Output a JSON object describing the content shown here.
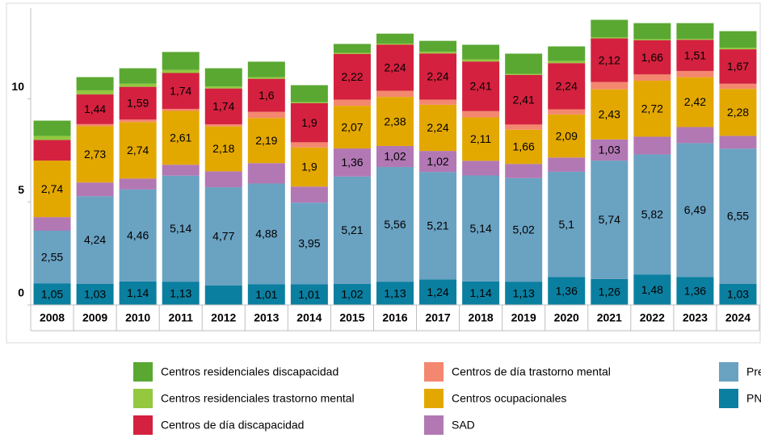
{
  "chart_data": {
    "type": "stacked_bar",
    "categories": [
      "2008",
      "2009",
      "2010",
      "2011",
      "2012",
      "2013",
      "2014",
      "2015",
      "2016",
      "2017",
      "2018",
      "2019",
      "2020",
      "2021",
      "2022",
      "2023",
      "2024"
    ],
    "ylim": [
      0,
      14.4
    ],
    "yticks": [
      0,
      5,
      10
    ],
    "grid": false,
    "series": [
      {
        "name": "PN",
        "color": "#0b7fa0",
        "values": [
          1.05,
          1.03,
          1.14,
          1.13,
          0.94,
          1.01,
          1.01,
          1.02,
          1.13,
          1.24,
          1.14,
          1.13,
          1.36,
          1.26,
          1.48,
          1.36,
          1.03
        ],
        "value_labels": [
          "1,05",
          "1,03",
          "1,14",
          "1,13",
          null,
          "1,01",
          "1,01",
          "1,02",
          "1,13",
          "1,24",
          "1,14",
          "1,13",
          "1,36",
          "1,26",
          "1,48",
          "1,36",
          "1,03"
        ]
      },
      {
        "name": "Pre",
        "color": "#6aa2c2",
        "values": [
          2.55,
          4.24,
          4.46,
          5.14,
          4.77,
          4.88,
          3.95,
          5.21,
          5.56,
          5.21,
          5.14,
          5.02,
          5.1,
          5.74,
          5.82,
          6.49,
          6.55
        ],
        "value_labels": [
          "2,55",
          "4,24",
          "4,46",
          "5,14",
          "4,77",
          "4,88",
          "3,95",
          "5,21",
          "5,56",
          "5,21",
          "5,14",
          "5,02",
          "5,1",
          "5,74",
          "5,82",
          "6,49",
          "6,55"
        ]
      },
      {
        "name": "SAD",
        "color": "#b278b4",
        "values": [
          0.66,
          0.67,
          0.53,
          0.53,
          0.77,
          0.99,
          0.78,
          1.36,
          1.02,
          1.02,
          0.71,
          0.69,
          0.69,
          1.03,
          0.86,
          0.78,
          0.62
        ],
        "value_labels": [
          null,
          null,
          null,
          null,
          null,
          null,
          null,
          "1,36",
          "1,02",
          "1,02",
          null,
          null,
          null,
          "1,03",
          null,
          null,
          null
        ]
      },
      {
        "name": "Centros ocupacionales",
        "color": "#e3a800",
        "values": [
          2.74,
          2.73,
          2.74,
          2.61,
          2.18,
          2.19,
          1.9,
          2.07,
          2.38,
          2.24,
          2.11,
          1.66,
          2.09,
          2.43,
          2.72,
          2.42,
          2.28
        ],
        "value_labels": [
          "2,74",
          "2,73",
          "2,74",
          "2,61",
          "2,18",
          "2,19",
          "1,9",
          "2,07",
          "2,38",
          "2,24",
          "2,11",
          "1,66",
          "2,09",
          "2,43",
          "2,72",
          "2,42",
          "2,28"
        ]
      },
      {
        "name": "Centros de día trastorno mental",
        "color": "#f4876f",
        "values": [
          0,
          0.1,
          0.12,
          0.1,
          0.1,
          0.3,
          0.25,
          0.3,
          0.3,
          0.25,
          0.3,
          0.25,
          0.25,
          0.35,
          0.3,
          0.3,
          0.25
        ]
      },
      {
        "name": "Centros de día discapacidad",
        "color": "#d4213f",
        "values": [
          1.0,
          1.44,
          1.59,
          1.74,
          1.74,
          1.6,
          1.9,
          2.22,
          2.24,
          2.24,
          2.41,
          2.41,
          2.24,
          2.12,
          1.66,
          1.51,
          1.67
        ],
        "value_labels": [
          null,
          "1,44",
          "1,59",
          "1,74",
          "1,74",
          "1,6",
          "1,9",
          "2,22",
          "2,24",
          "2,24",
          "2,41",
          "2,41",
          "2,24",
          "2,12",
          "1,66",
          "1,51",
          "1,67"
        ]
      },
      {
        "name": "Centros residenciales trastorno mental",
        "color": "#93c83f",
        "values": [
          0.2,
          0.2,
          0.15,
          0.15,
          0.1,
          0.08,
          0.05,
          0.05,
          0.05,
          0.08,
          0.1,
          0.05,
          0.1,
          0.05,
          0.05,
          0.05,
          0.08
        ]
      },
      {
        "name": "Centros residenciales discapacidad",
        "color": "#5aa832",
        "values": [
          0.74,
          0.64,
          0.75,
          0.87,
          0.88,
          0.75,
          0.82,
          0.43,
          0.48,
          0.53,
          0.71,
          0.98,
          0.71,
          0.85,
          0.78,
          0.76,
          0.8
        ]
      }
    ]
  }
}
